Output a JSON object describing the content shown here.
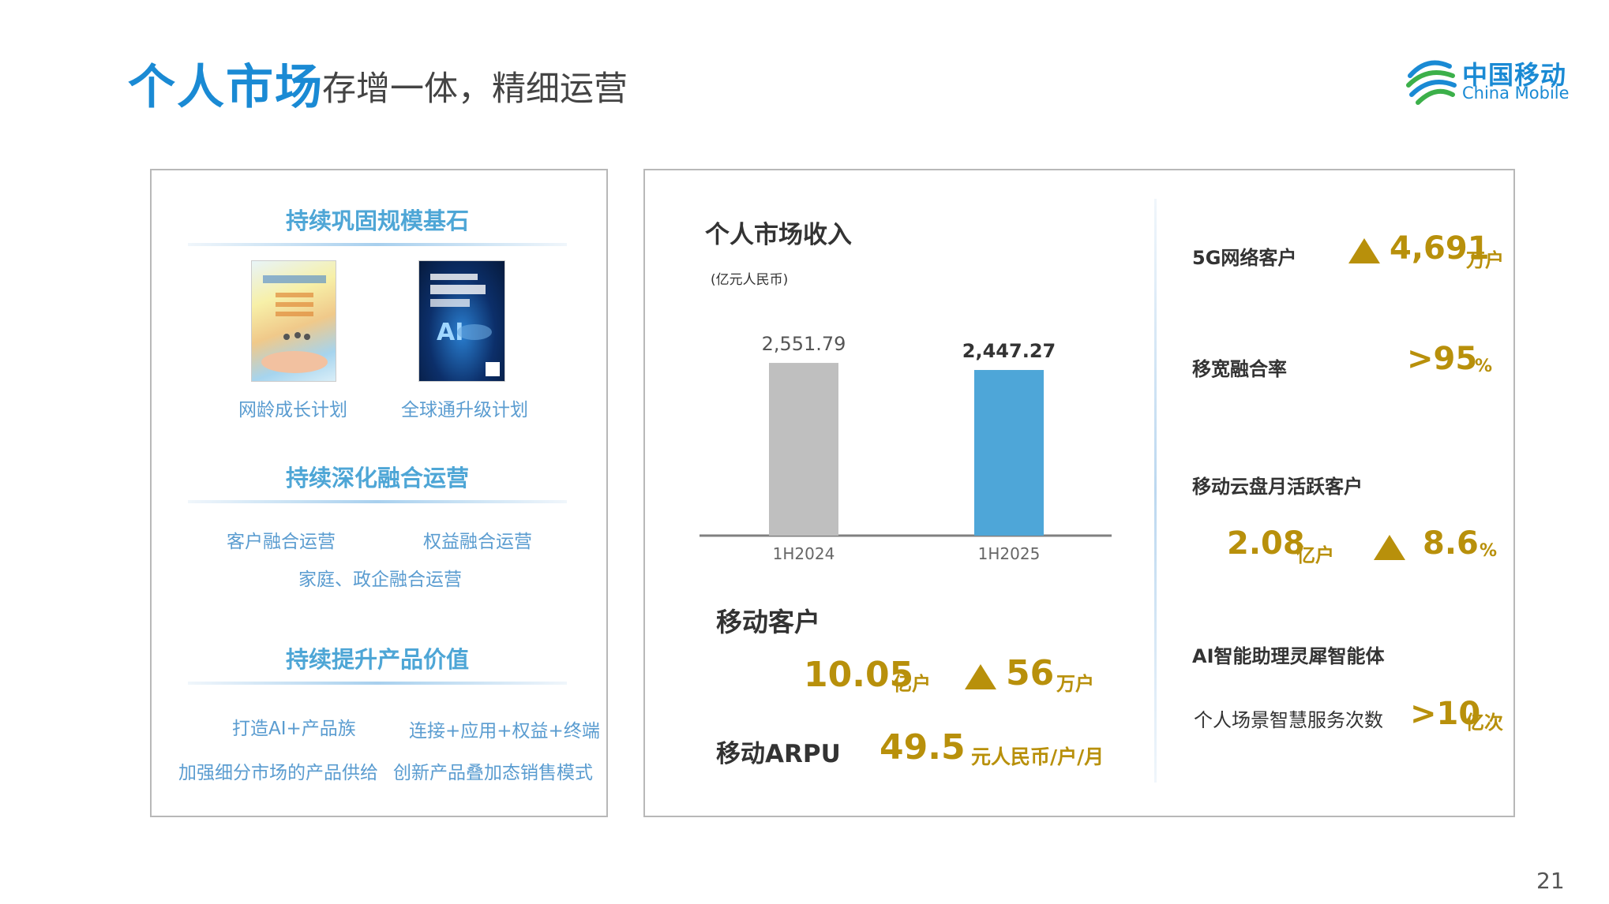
{
  "header": {
    "title_main": "个人市场",
    "title_sub": "存增一体，精细运营",
    "logo_cn": "中国移动",
    "logo_en": "China Mobile"
  },
  "left_panel": {
    "section1": {
      "title": "持续巩固规模基石",
      "items": [
        "网龄成长计划",
        "全球通升级计划"
      ]
    },
    "section2": {
      "title": "持续深化融合运营",
      "items": [
        "客户融合运营",
        "权益融合运营",
        "家庭、政企融合运营"
      ]
    },
    "section3": {
      "title": "持续提升产品价值",
      "items": [
        "打造AI+产品族",
        "连接+应用+权益+终端",
        "加强细分市场的产品供给",
        "创新产品叠加态销售模式"
      ]
    }
  },
  "chart": {
    "title": "个人市场收入",
    "unit": "(亿元人民币)"
  },
  "chart_data": {
    "type": "bar",
    "title": "个人市场收入",
    "ylabel": "(亿元人民币)",
    "categories": [
      "1H2024",
      "1H2025"
    ],
    "values": [
      2551.79,
      2447.27
    ],
    "value_labels": [
      "2,551.79",
      "2,447.27"
    ],
    "colors": [
      "#bfbfbf",
      "#4ea6d8"
    ],
    "ylim": [
      0,
      2600
    ],
    "grid": false
  },
  "mobile": {
    "customers_label": "移动客户",
    "customers_value": "10.05",
    "customers_unit": "亿户",
    "customers_growth": "56",
    "customers_growth_unit": "万户",
    "arpu_label": "移动ARPU",
    "arpu_value": "49.5",
    "arpu_unit": "元人民币/户/月"
  },
  "right_stats": {
    "fiveg_label": "5G网络客户",
    "fiveg_value": "4,691",
    "fiveg_unit": "万户",
    "broadband_label": "移宽融合率",
    "broadband_value": ">95",
    "broadband_unit": "%",
    "cloud_label": "移动云盘月活跃客户",
    "cloud_value": "2.08",
    "cloud_unit": "亿户",
    "cloud_growth": "8.6",
    "cloud_growth_unit": "%",
    "ai_label": "AI智能助理灵犀智能体",
    "ai_sub_label": "个人场景智慧服务次数",
    "ai_value": ">10",
    "ai_unit": "亿次"
  },
  "colors": {
    "brand_blue": "#1a8ad4",
    "section_blue": "#4ea6d6",
    "gold": "#b8900b",
    "bar_gray": "#bfbfbf",
    "bar_blue": "#4ea6d8"
  },
  "page_number": "21"
}
